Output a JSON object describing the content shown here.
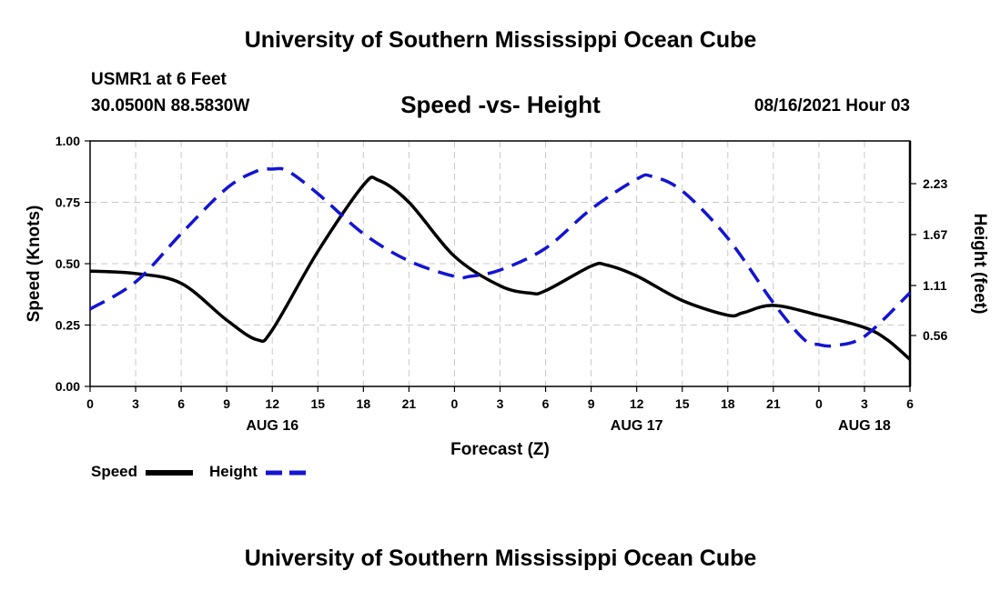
{
  "page": {
    "title_top": "University of Southern Mississippi Ocean Cube",
    "title_bottom": "University of Southern Mississippi Ocean Cube",
    "station": "USMR1 at 6 Feet",
    "coordinates": "30.0500N  88.5830W",
    "run_time": "08/16/2021 Hour 03"
  },
  "chart_data": {
    "type": "line",
    "title": "Speed -vs- Height",
    "xlabel": "Forecast (Z)",
    "ylabel": "Speed (Knots)",
    "y2label": "Height (feet)",
    "x_range": [
      0,
      54
    ],
    "x_ticks": [
      {
        "x": 0,
        "label": "0"
      },
      {
        "x": 3,
        "label": "3"
      },
      {
        "x": 6,
        "label": "6"
      },
      {
        "x": 9,
        "label": "9"
      },
      {
        "x": 12,
        "label": "12"
      },
      {
        "x": 15,
        "label": "15"
      },
      {
        "x": 18,
        "label": "18"
      },
      {
        "x": 21,
        "label": "21"
      },
      {
        "x": 24,
        "label": "0"
      },
      {
        "x": 27,
        "label": "3"
      },
      {
        "x": 30,
        "label": "6"
      },
      {
        "x": 33,
        "label": "9"
      },
      {
        "x": 36,
        "label": "12"
      },
      {
        "x": 39,
        "label": "15"
      },
      {
        "x": 42,
        "label": "18"
      },
      {
        "x": 45,
        "label": "21"
      },
      {
        "x": 48,
        "label": "0"
      },
      {
        "x": 51,
        "label": "3"
      },
      {
        "x": 54,
        "label": "6"
      }
    ],
    "date_labels": [
      {
        "x": 12,
        "label": "AUG 16"
      },
      {
        "x": 36,
        "label": "AUG 17"
      },
      {
        "x": 51,
        "label": "AUG 18"
      }
    ],
    "y_left": {
      "range": [
        0,
        1
      ],
      "ticks": [
        0,
        0.25,
        0.5,
        0.75,
        1
      ],
      "tick_labels": [
        "0.00",
        "0.25",
        "0.50",
        "0.75",
        "1.00"
      ]
    },
    "y_right": {
      "range": [
        0,
        2.7
      ],
      "ticks": [
        0.56,
        1.11,
        1.67,
        2.23
      ],
      "tick_labels": [
        "0.56",
        "1.11",
        "1.67",
        "2.23"
      ]
    },
    "grid": true,
    "legend_position": "bottom-left",
    "series": [
      {
        "name": "Speed",
        "axis": "left",
        "color": "#000000",
        "style": "solid",
        "x": [
          0,
          3,
          6,
          9,
          11,
          12,
          15,
          18,
          19,
          21,
          24,
          27,
          29,
          30,
          33,
          34,
          36,
          39,
          42,
          43,
          45,
          48,
          51,
          52.5,
          54
        ],
        "y": [
          0.47,
          0.46,
          0.42,
          0.27,
          0.19,
          0.23,
          0.55,
          0.82,
          0.84,
          0.75,
          0.53,
          0.41,
          0.38,
          0.39,
          0.49,
          0.495,
          0.45,
          0.35,
          0.29,
          0.3,
          0.33,
          0.29,
          0.24,
          0.19,
          0.11
        ]
      },
      {
        "name": "Height",
        "axis": "right",
        "color": "#1414d2",
        "style": "dashed",
        "x": [
          0,
          3,
          6,
          9,
          11,
          12,
          13,
          15,
          18,
          21,
          24,
          25,
          27,
          30,
          33,
          36,
          37,
          39,
          42,
          45,
          47,
          48,
          49,
          51,
          54
        ],
        "y": [
          0.85,
          1.15,
          1.68,
          2.18,
          2.37,
          2.39,
          2.37,
          2.12,
          1.68,
          1.38,
          1.21,
          1.21,
          1.28,
          1.52,
          1.95,
          2.28,
          2.31,
          2.15,
          1.63,
          0.92,
          0.52,
          0.46,
          0.45,
          0.55,
          1.03
        ]
      }
    ]
  }
}
